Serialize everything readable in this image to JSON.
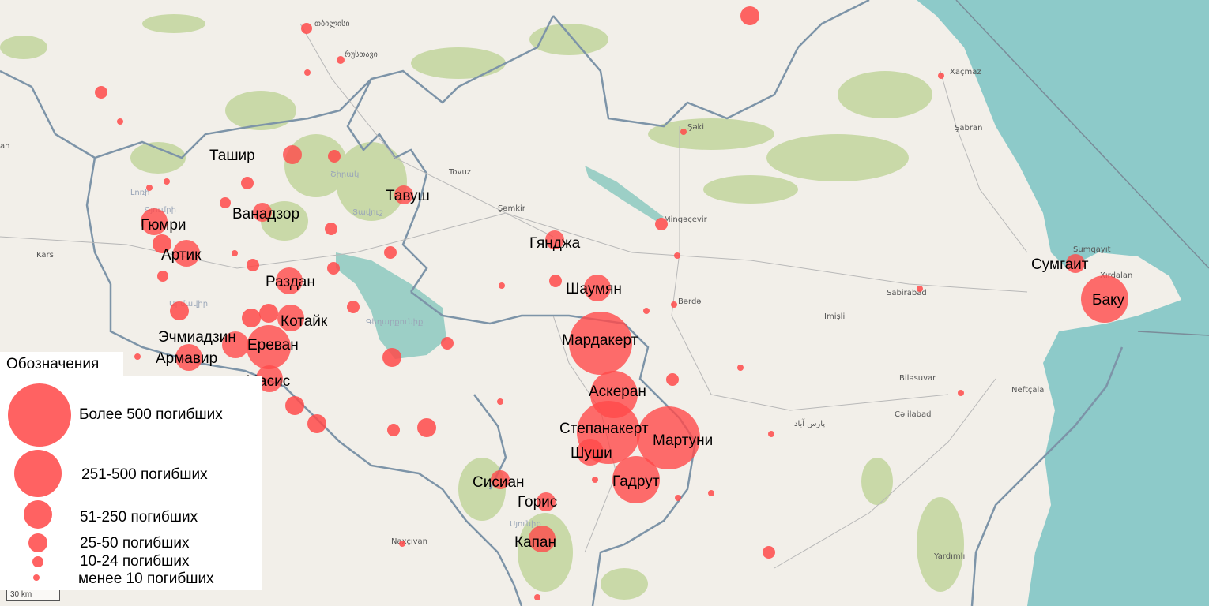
{
  "marker_color": "#ff4a4a",
  "legend": {
    "title": "Обозначения",
    "items": [
      {
        "label": "Более 500 погибших"
      },
      {
        "label": "251-500 погибших"
      },
      {
        "label": "51-250 погибших"
      },
      {
        "label": "25-50 погибших"
      },
      {
        "label": "10-24 погибших"
      },
      {
        "label": "менее 10 погибших"
      }
    ]
  },
  "scale_label": "30 km",
  "markers": [
    {
      "label": "Ташир",
      "category": "10-24 погибших"
    },
    {
      "label": "Тавуш",
      "category": "10-24 погибших"
    },
    {
      "label": "Ванадзор",
      "category": "10-24 погибших"
    },
    {
      "label": "Гюмри",
      "category": "25-50 погибших"
    },
    {
      "label": "Артик",
      "category": "25-50 погибших"
    },
    {
      "label": "Раздан",
      "category": "25-50 погибших"
    },
    {
      "label": "Котайк",
      "category": "25-50 погибших"
    },
    {
      "label": "Ереван",
      "category": "51-250 погибших"
    },
    {
      "label": "Эчмиадзин",
      "category": "25-50 погибших"
    },
    {
      "label": "Армавир",
      "category": "25-50 погибших"
    },
    {
      "label": "Масис",
      "category": "25-50 погибших"
    },
    {
      "label": "Гянджа",
      "category": "10-24 погибших"
    },
    {
      "label": "Шаумян",
      "category": "25-50 погибших"
    },
    {
      "label": "Мардакерт",
      "category": "Более 500 погибших"
    },
    {
      "label": "Аскеран",
      "category": "251-500 погибших"
    },
    {
      "label": "Степанакерт",
      "category": "Более 500 погибших"
    },
    {
      "label": "Мартуни",
      "category": "Более 500 погибших"
    },
    {
      "label": "Шуши",
      "category": "25-50 погибших"
    },
    {
      "label": "Гадрут",
      "category": "251-500 погибших"
    },
    {
      "label": "Сисиан",
      "category": "10-24 погибших"
    },
    {
      "label": "Горис",
      "category": "10-24 погибших"
    },
    {
      "label": "Капан",
      "category": "25-50 погибших"
    },
    {
      "label": "Сумгаит",
      "category": "10-24 погибших"
    },
    {
      "label": "Баку",
      "category": "251-500 погибших"
    }
  ],
  "base_labels": [
    "თბილისი",
    "რუსთავი",
    "Kars",
    "Tovuz",
    "Şəmkir",
    "Mingəçevir",
    "Şəki",
    "Xaçmaz",
    "Şabran",
    "Sumqayıt",
    "Xırdalan",
    "Bərdə",
    "Sabirabad",
    "İmişli",
    "Biləsuvar",
    "Neftçala",
    "Cəlilabad",
    "Yardımlı",
    "Naxçıvan",
    "پارس آباد",
    "an"
  ],
  "region_labels": [
    "Լոռի",
    "Շիրակ",
    "Գյումրի",
    "Տավուշ",
    "Արմավիր",
    "Գեղարքունիք",
    "Սյունիք"
  ]
}
